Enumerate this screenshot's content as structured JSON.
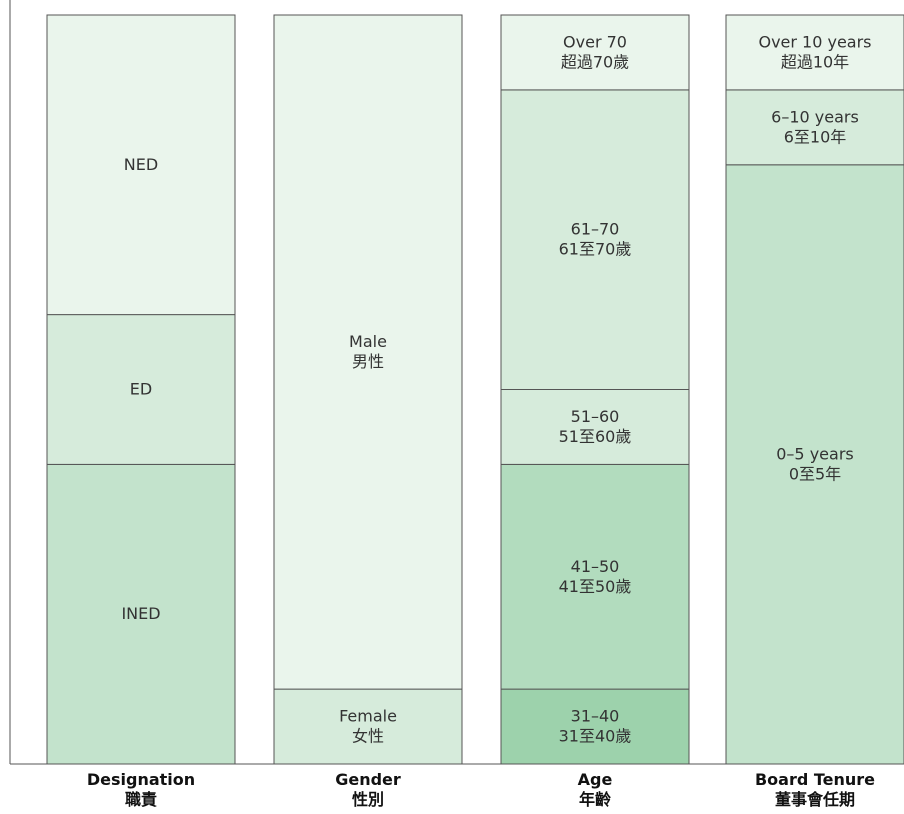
{
  "chart_data": {
    "type": "bar",
    "stacked": "100%",
    "legend": "none",
    "colors": {
      "lightest": "#eaf5ec",
      "light": "#d6ebdb",
      "mid": "#c3e3cc",
      "midstrong": "#b2dcbe",
      "strong": "#9dd2ac",
      "border": "#555555"
    },
    "columns": [
      {
        "category": [
          "Designation",
          "職責"
        ],
        "segments": [
          {
            "label": [
              "INED"
            ],
            "percent": 40.0,
            "color": "mid"
          },
          {
            "label": [
              "ED"
            ],
            "percent": 20.0,
            "color": "light"
          },
          {
            "label": [
              "NED"
            ],
            "percent": 40.0,
            "color": "lightest"
          }
        ]
      },
      {
        "category": [
          "Gender",
          "性別"
        ],
        "segments": [
          {
            "label": [
              "Female",
              "女性"
            ],
            "percent": 10.0,
            "color": "light"
          },
          {
            "label": [
              "Male",
              "男性"
            ],
            "percent": 90.0,
            "color": "lightest"
          }
        ]
      },
      {
        "category": [
          "Age",
          "年齡"
        ],
        "segments": [
          {
            "label": [
              "31–40",
              "31至40歲"
            ],
            "percent": 10.0,
            "color": "strong"
          },
          {
            "label": [
              "41–50",
              "41至50歲"
            ],
            "percent": 30.0,
            "color": "midstrong"
          },
          {
            "label": [
              "51–60",
              "51至60歲"
            ],
            "percent": 10.0,
            "color": "light"
          },
          {
            "label": [
              "61–70",
              "61至70歲"
            ],
            "percent": 40.0,
            "color": "light"
          },
          {
            "label": [
              "Over 70",
              "超過70歲"
            ],
            "percent": 10.0,
            "color": "lightest"
          }
        ]
      },
      {
        "category": [
          "Board Tenure",
          "董事會任期"
        ],
        "segments": [
          {
            "label": [
              "0–5 years",
              "0至5年"
            ],
            "percent": 80.0,
            "color": "mid"
          },
          {
            "label": [
              "6–10 years",
              "6至10年"
            ],
            "percent": 10.0,
            "color": "light"
          },
          {
            "label": [
              "Over 10 years",
              "超過10年"
            ],
            "percent": 10.0,
            "color": "lightest"
          }
        ]
      }
    ]
  }
}
